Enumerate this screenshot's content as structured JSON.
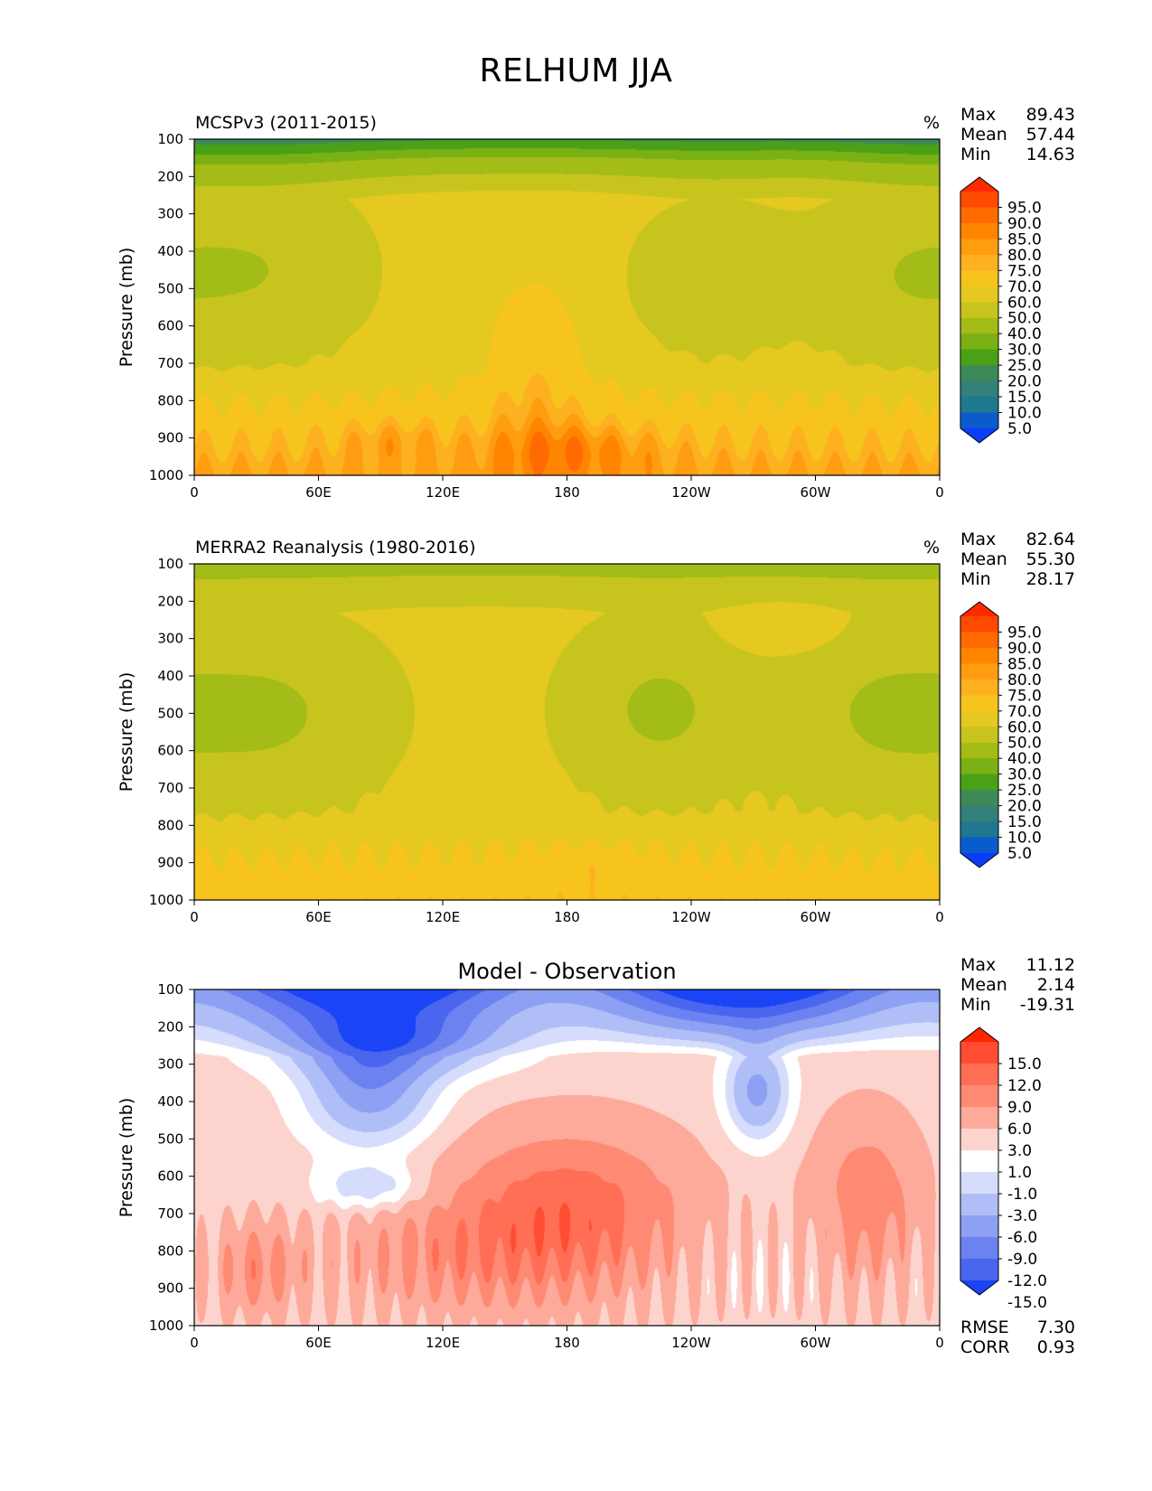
{
  "figure": {
    "title": "RELHUM JJA"
  },
  "chart_data": [
    {
      "type": "heatmap",
      "panel": "top",
      "title": "MCSPv3 (2011-2015)",
      "units": "%",
      "ylabel": "Pressure (mb)",
      "xticks": [
        "0",
        "60E",
        "120E",
        "180",
        "120W",
        "60W",
        "0"
      ],
      "yticks": [
        "100",
        "200",
        "300",
        "400",
        "500",
        "600",
        "700",
        "800",
        "900",
        "1000"
      ],
      "xlim": [
        0,
        360
      ],
      "ylim": [
        1000,
        100
      ],
      "stats": [
        {
          "label": "Max",
          "value": "89.43"
        },
        {
          "label": "Mean",
          "value": "57.44"
        },
        {
          "label": "Min",
          "value": "14.63"
        }
      ],
      "colorbar": {
        "levels": [
          "95.0",
          "90.0",
          "85.0",
          "80.0",
          "75.0",
          "70.0",
          "60.0",
          "50.0",
          "40.0",
          "30.0",
          "25.0",
          "20.0",
          "15.0",
          "10.0",
          "5.0"
        ],
        "colors": [
          "#ff2a00",
          "#ff4a00",
          "#ff6b00",
          "#ff8500",
          "#ff9c10",
          "#fdb020",
          "#f6c41c",
          "#e6c920",
          "#c8c41e",
          "#a4bc18",
          "#7bb015",
          "#4aa117",
          "#3d8a58",
          "#34807a",
          "#1f7890",
          "#0a5ccc",
          "#0a3df8"
        ]
      },
      "field": "model_relhum"
    },
    {
      "type": "heatmap",
      "panel": "middle",
      "title": "MERRA2 Reanalysis (1980-2016)",
      "units": "%",
      "ylabel": "Pressure (mb)",
      "xticks": [
        "0",
        "60E",
        "120E",
        "180",
        "120W",
        "60W",
        "0"
      ],
      "yticks": [
        "100",
        "200",
        "300",
        "400",
        "500",
        "600",
        "700",
        "800",
        "900",
        "1000"
      ],
      "xlim": [
        0,
        360
      ],
      "ylim": [
        1000,
        100
      ],
      "stats": [
        {
          "label": "Max",
          "value": "82.64"
        },
        {
          "label": "Mean",
          "value": "55.30"
        },
        {
          "label": "Min",
          "value": "28.17"
        }
      ],
      "colorbar": {
        "levels": [
          "95.0",
          "90.0",
          "85.0",
          "80.0",
          "75.0",
          "70.0",
          "60.0",
          "50.0",
          "40.0",
          "30.0",
          "25.0",
          "20.0",
          "15.0",
          "10.0",
          "5.0"
        ],
        "colors": [
          "#ff2a00",
          "#ff4a00",
          "#ff6b00",
          "#ff8500",
          "#ff9c10",
          "#fdb020",
          "#f6c41c",
          "#e6c920",
          "#c8c41e",
          "#a4bc18",
          "#7bb015",
          "#4aa117",
          "#3d8a58",
          "#34807a",
          "#1f7890",
          "#0a5ccc",
          "#0a3df8"
        ]
      },
      "field": "obs_relhum"
    },
    {
      "type": "heatmap",
      "panel": "bottom",
      "title": "Model - Observation",
      "units": "",
      "ylabel": "Pressure (mb)",
      "xticks": [
        "0",
        "60E",
        "120E",
        "180",
        "120W",
        "60W",
        "0"
      ],
      "yticks": [
        "100",
        "200",
        "300",
        "400",
        "500",
        "600",
        "700",
        "800",
        "900",
        "1000"
      ],
      "xlim": [
        0,
        360
      ],
      "ylim": [
        1000,
        100
      ],
      "stats": [
        {
          "label": "Max",
          "value": "11.12"
        },
        {
          "label": "Mean",
          "value": "2.14"
        },
        {
          "label": "Min",
          "value": "-19.31"
        }
      ],
      "extra_stats": [
        {
          "label": "RMSE",
          "value": "7.30"
        },
        {
          "label": "CORR",
          "value": "0.93"
        }
      ],
      "colorbar": {
        "levels": [
          "15.0",
          "12.0",
          "9.0",
          "6.0",
          "3.0",
          "1.0",
          "-1.0",
          "-3.0",
          "-6.0",
          "-9.0",
          "-12.0",
          "-15.0"
        ],
        "colors": [
          "#ff2600",
          "#fe4d33",
          "#ff6e55",
          "#fe8a74",
          "#fdaa9b",
          "#fdd4cd",
          "#ffffff",
          "#d6dcfb",
          "#b0bef7",
          "#8da0f3",
          "#6b82f0",
          "#4a66ef",
          "#1a44f5"
        ]
      },
      "field": "diff_relhum"
    }
  ]
}
